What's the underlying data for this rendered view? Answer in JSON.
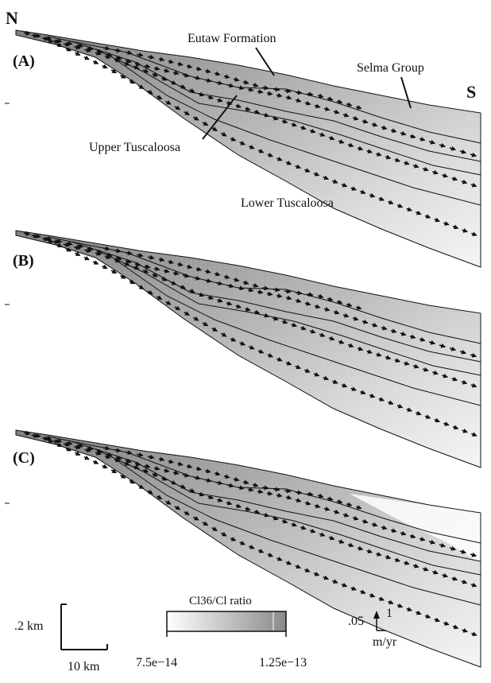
{
  "orientation": {
    "north": "N",
    "south": "S"
  },
  "panels": [
    {
      "label": "(A)"
    },
    {
      "label": "(B)"
    },
    {
      "label": "(C)"
    }
  ],
  "units": [
    "Eutaw Formation",
    "Selma Group",
    "Upper Tuscaloosa",
    "Lower Tuscaloosa"
  ],
  "scale_bar": {
    "vertical": ".2 km",
    "horizontal": "10 km"
  },
  "colorbar": {
    "title": "Cl36/Cl ratio",
    "min": "7.5e−14",
    "max": "1.25e−13"
  },
  "velocity_scale": {
    "value": ".05",
    "tick": "1",
    "unit": "m/yr"
  },
  "colors": {
    "shade_dark": "#8a8a8a",
    "shade_light": "#f3f3f3",
    "lines": "#111111"
  }
}
